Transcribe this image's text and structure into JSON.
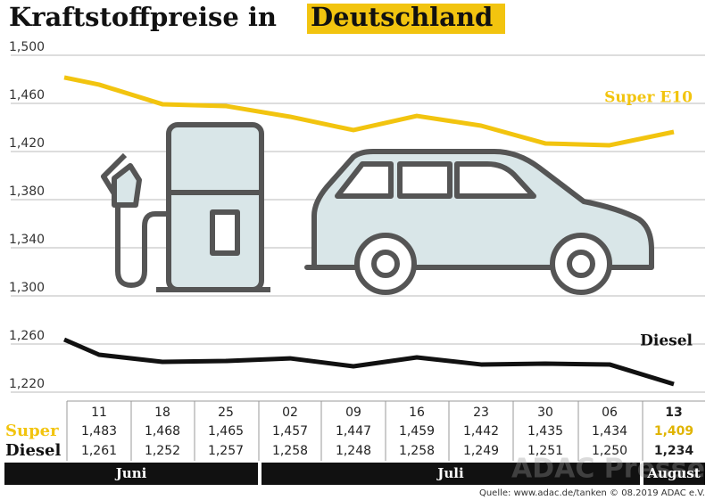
{
  "chart_data": {
    "type": "line",
    "title": "Kraftstoffpreise in",
    "title_highlight": "Deutschland",
    "categories": [
      null,
      "11",
      "18",
      "25",
      "02",
      "09",
      "16",
      "23",
      "30",
      "06",
      "13"
    ],
    "series": [
      {
        "name": "Super E10",
        "color": "#f2c40f",
        "values": [
          1.4815,
          1.4756,
          1.4593,
          1.4578,
          1.4489,
          1.4378,
          1.4496,
          1.4415,
          1.4267,
          1.4252,
          1.4363
        ]
      },
      {
        "name": "Diesel",
        "color": "#111111",
        "values": [
          1.2637,
          1.2511,
          1.2452,
          1.2459,
          1.2481,
          1.2415,
          1.2489,
          1.243,
          1.2437,
          1.243,
          1.2267
        ]
      }
    ],
    "ylim": [
      1.22,
      1.5
    ],
    "yticks": [
      {
        "value": 1.22,
        "label": "1,220"
      },
      {
        "value": 1.26,
        "label": "1,260"
      },
      {
        "value": 1.3,
        "label": "1,300"
      },
      {
        "value": 1.34,
        "label": "1,340"
      },
      {
        "value": 1.38,
        "label": "1,380"
      },
      {
        "value": 1.42,
        "label": "1,420"
      },
      {
        "value": 1.46,
        "label": "1,460"
      },
      {
        "value": 1.5,
        "label": "1,500"
      }
    ],
    "grid": true,
    "table": {
      "rows": [
        {
          "name": "Super",
          "values": [
            "1,483",
            "1,468",
            "1,465",
            "1,457",
            "1,447",
            "1,459",
            "1,442",
            "1,435",
            "1,434",
            "1,409"
          ]
        },
        {
          "name": "Diesel",
          "values": [
            "1,261",
            "1,252",
            "1,257",
            "1,258",
            "1,248",
            "1,258",
            "1,249",
            "1,251",
            "1,250",
            "1,234"
          ]
        }
      ]
    },
    "months": [
      "Juni",
      "Juli",
      "August"
    ],
    "watermark": "ADAC Presse",
    "source": "Quelle: www.adac.de/tanken  © 08.2019  ADAC e.V."
  }
}
